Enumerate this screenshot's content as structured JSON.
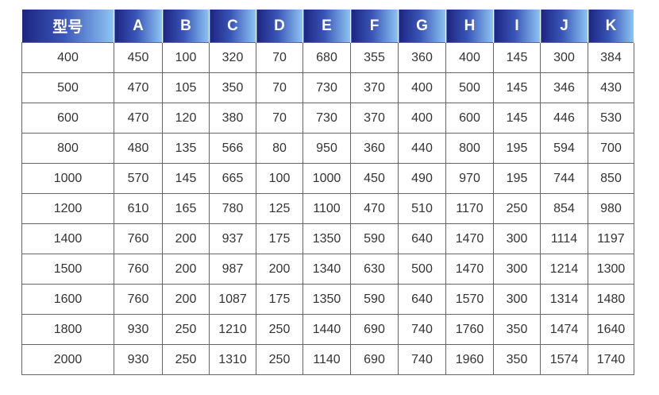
{
  "table": {
    "headers": [
      "型号",
      "A",
      "B",
      "C",
      "D",
      "E",
      "F",
      "G",
      "H",
      "I",
      "J",
      "K"
    ],
    "rows": [
      [
        "400",
        "450",
        "100",
        "320",
        "70",
        "680",
        "355",
        "360",
        "400",
        "145",
        "300",
        "384"
      ],
      [
        "500",
        "470",
        "105",
        "350",
        "70",
        "730",
        "370",
        "400",
        "500",
        "145",
        "346",
        "430"
      ],
      [
        "600",
        "470",
        "120",
        "380",
        "70",
        "730",
        "370",
        "400",
        "600",
        "145",
        "446",
        "530"
      ],
      [
        "800",
        "480",
        "135",
        "566",
        "80",
        "950",
        "360",
        "440",
        "800",
        "195",
        "594",
        "700"
      ],
      [
        "1000",
        "570",
        "145",
        "665",
        "100",
        "1000",
        "450",
        "490",
        "970",
        "195",
        "744",
        "850"
      ],
      [
        "1200",
        "610",
        "165",
        "780",
        "125",
        "1100",
        "470",
        "510",
        "1170",
        "250",
        "854",
        "980"
      ],
      [
        "1400",
        "760",
        "200",
        "937",
        "175",
        "1350",
        "590",
        "640",
        "1470",
        "300",
        "1114",
        "1197"
      ],
      [
        "1500",
        "760",
        "200",
        "987",
        "200",
        "1340",
        "630",
        "500",
        "1470",
        "300",
        "1214",
        "1300"
      ],
      [
        "1600",
        "760",
        "200",
        "1087",
        "175",
        "1350",
        "590",
        "640",
        "1570",
        "300",
        "1314",
        "1480"
      ],
      [
        "1800",
        "930",
        "250",
        "1210",
        "250",
        "1440",
        "690",
        "740",
        "1760",
        "350",
        "1474",
        "1640"
      ],
      [
        "2000",
        "930",
        "250",
        "1310",
        "250",
        "1140",
        "690",
        "740",
        "1960",
        "350",
        "1574",
        "1740"
      ]
    ]
  },
  "colors": {
    "header_dark": "#1d2580",
    "header_light": "#8ec6f2",
    "border": "#666666"
  }
}
